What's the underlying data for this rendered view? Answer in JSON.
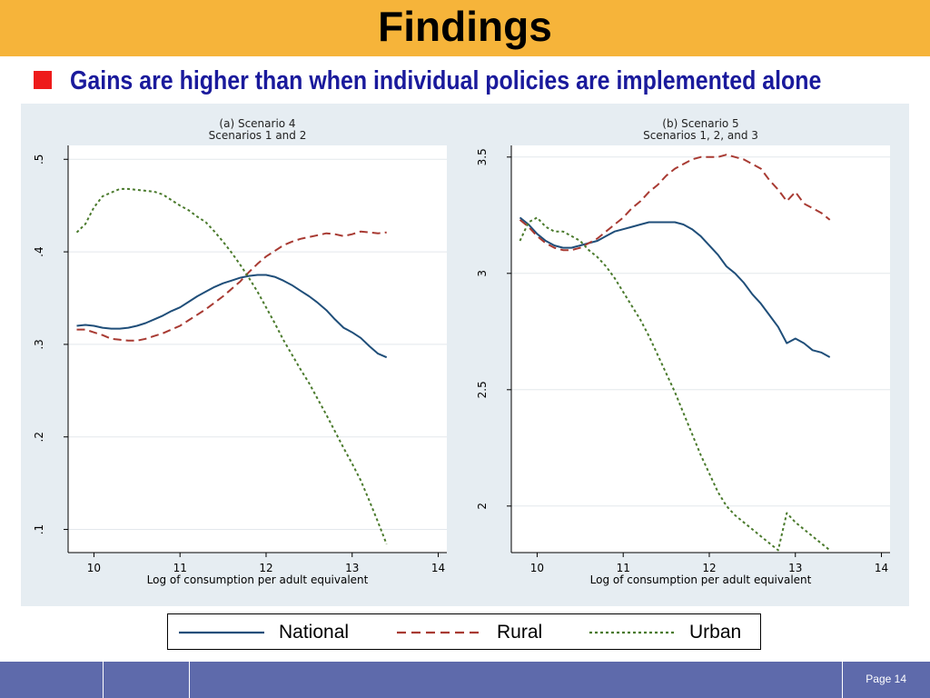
{
  "slide": {
    "title": "Findings",
    "subtitle": "Gains are higher than when individual policies are implemented alone",
    "page": "Page 14"
  },
  "colors": {
    "title_bar": "#f6b43a",
    "subtitle": "#1a1a9c",
    "bullet": "#ee1b1b",
    "footer": "#5e6aab",
    "national": "#1f4e79",
    "rural": "#a83a32",
    "urban": "#4a7a2c"
  },
  "legend": [
    "National",
    "Rural",
    "Urban"
  ],
  "chart_data": [
    {
      "type": "line",
      "title": "(a) Scenario 4",
      "subtitle": "Scenarios 1 and 2",
      "xlabel": "Log of consumption per adult equivalent",
      "ylabel": "",
      "xlim": [
        9.7,
        14.1
      ],
      "ylim": [
        0.075,
        0.515
      ],
      "xticks": [
        10,
        11,
        12,
        13,
        14
      ],
      "yticks": [
        0.1,
        0.2,
        0.3,
        0.4,
        0.5
      ],
      "ytick_labels": [
        ".1",
        ".2",
        ".3",
        ".4",
        ".5"
      ],
      "grid": true,
      "series": [
        {
          "name": "National",
          "style": "solid",
          "x": [
            9.8,
            9.9,
            10.0,
            10.1,
            10.2,
            10.3,
            10.4,
            10.5,
            10.6,
            10.7,
            10.8,
            10.9,
            11.0,
            11.1,
            11.2,
            11.3,
            11.4,
            11.5,
            11.6,
            11.7,
            11.8,
            11.9,
            12.0,
            12.1,
            12.2,
            12.3,
            12.4,
            12.5,
            12.6,
            12.7,
            12.8,
            12.9,
            13.0,
            13.1,
            13.2,
            13.3,
            13.4
          ],
          "y": [
            0.32,
            0.321,
            0.32,
            0.318,
            0.317,
            0.317,
            0.318,
            0.32,
            0.323,
            0.327,
            0.331,
            0.336,
            0.34,
            0.346,
            0.352,
            0.357,
            0.362,
            0.366,
            0.369,
            0.372,
            0.374,
            0.375,
            0.375,
            0.373,
            0.369,
            0.364,
            0.358,
            0.352,
            0.345,
            0.337,
            0.327,
            0.318,
            0.313,
            0.307,
            0.298,
            0.29,
            0.286
          ]
        },
        {
          "name": "Rural",
          "style": "dashed",
          "x": [
            9.8,
            9.9,
            10.0,
            10.1,
            10.2,
            10.3,
            10.4,
            10.5,
            10.6,
            10.7,
            10.8,
            10.9,
            11.0,
            11.1,
            11.2,
            11.3,
            11.4,
            11.5,
            11.6,
            11.7,
            11.8,
            11.9,
            12.0,
            12.1,
            12.2,
            12.3,
            12.4,
            12.5,
            12.6,
            12.7,
            12.8,
            12.9,
            13.0,
            13.1,
            13.2,
            13.3,
            13.4
          ],
          "y": [
            0.316,
            0.316,
            0.313,
            0.31,
            0.306,
            0.305,
            0.304,
            0.304,
            0.306,
            0.309,
            0.312,
            0.316,
            0.32,
            0.326,
            0.332,
            0.338,
            0.345,
            0.352,
            0.36,
            0.368,
            0.378,
            0.387,
            0.395,
            0.401,
            0.407,
            0.411,
            0.414,
            0.416,
            0.418,
            0.42,
            0.419,
            0.417,
            0.419,
            0.422,
            0.421,
            0.42,
            0.421
          ]
        },
        {
          "name": "Urban",
          "style": "dotted",
          "x": [
            9.8,
            9.9,
            10.0,
            10.1,
            10.2,
            10.3,
            10.4,
            10.5,
            10.6,
            10.7,
            10.8,
            10.9,
            11.0,
            11.1,
            11.2,
            11.3,
            11.4,
            11.5,
            11.6,
            11.7,
            11.8,
            11.9,
            12.0,
            12.1,
            12.2,
            12.3,
            12.4,
            12.5,
            12.6,
            12.7,
            12.8,
            12.9,
            13.0,
            13.1,
            13.2,
            13.3,
            13.4
          ],
          "y": [
            0.421,
            0.43,
            0.448,
            0.46,
            0.464,
            0.468,
            0.468,
            0.467,
            0.466,
            0.465,
            0.462,
            0.456,
            0.45,
            0.445,
            0.438,
            0.432,
            0.422,
            0.411,
            0.399,
            0.386,
            0.372,
            0.357,
            0.34,
            0.323,
            0.305,
            0.289,
            0.273,
            0.258,
            0.241,
            0.224,
            0.206,
            0.188,
            0.171,
            0.153,
            0.131,
            0.108,
            0.084
          ]
        }
      ]
    },
    {
      "type": "line",
      "title": "(b) Scenario 5",
      "subtitle": "Scenarios 1, 2, and 3",
      "xlabel": "Log of consumption per adult equivalent",
      "ylabel": "",
      "xlim": [
        9.7,
        14.1
      ],
      "ylim": [
        1.8,
        3.55
      ],
      "xticks": [
        10,
        11,
        12,
        13,
        14
      ],
      "yticks": [
        2,
        2.5,
        3,
        3.5
      ],
      "ytick_labels": [
        "2",
        "2.5",
        "3",
        "3.5"
      ],
      "grid": true,
      "series": [
        {
          "name": "National",
          "style": "solid",
          "x": [
            9.8,
            9.9,
            10.0,
            10.1,
            10.2,
            10.3,
            10.4,
            10.5,
            10.6,
            10.7,
            10.8,
            10.9,
            11.0,
            11.1,
            11.2,
            11.3,
            11.4,
            11.5,
            11.6,
            11.7,
            11.8,
            11.9,
            12.0,
            12.1,
            12.2,
            12.3,
            12.4,
            12.5,
            12.6,
            12.7,
            12.8,
            12.9,
            13.0,
            13.1,
            13.2,
            13.3,
            13.4
          ],
          "y": [
            3.24,
            3.21,
            3.17,
            3.14,
            3.12,
            3.11,
            3.11,
            3.12,
            3.13,
            3.14,
            3.16,
            3.18,
            3.19,
            3.2,
            3.21,
            3.22,
            3.22,
            3.22,
            3.22,
            3.21,
            3.19,
            3.16,
            3.12,
            3.08,
            3.03,
            3.0,
            2.96,
            2.91,
            2.87,
            2.82,
            2.77,
            2.7,
            2.72,
            2.7,
            2.67,
            2.66,
            2.64
          ]
        },
        {
          "name": "Rural",
          "style": "dashed",
          "x": [
            9.8,
            9.9,
            10.0,
            10.1,
            10.2,
            10.3,
            10.4,
            10.5,
            10.6,
            10.7,
            10.8,
            10.9,
            11.0,
            11.1,
            11.2,
            11.3,
            11.4,
            11.5,
            11.6,
            11.7,
            11.8,
            11.9,
            12.0,
            12.1,
            12.2,
            12.3,
            12.4,
            12.5,
            12.6,
            12.7,
            12.8,
            12.9,
            13.0,
            13.1,
            13.2,
            13.3,
            13.4
          ],
          "y": [
            3.23,
            3.2,
            3.16,
            3.13,
            3.11,
            3.1,
            3.1,
            3.11,
            3.13,
            3.15,
            3.18,
            3.21,
            3.24,
            3.28,
            3.31,
            3.35,
            3.38,
            3.42,
            3.45,
            3.47,
            3.49,
            3.5,
            3.5,
            3.5,
            3.51,
            3.5,
            3.49,
            3.47,
            3.45,
            3.4,
            3.36,
            3.31,
            3.35,
            3.3,
            3.28,
            3.26,
            3.23
          ]
        },
        {
          "name": "Urban",
          "style": "dotted",
          "x": [
            9.8,
            9.9,
            10.0,
            10.1,
            10.2,
            10.3,
            10.4,
            10.5,
            10.6,
            10.7,
            10.8,
            10.9,
            11.0,
            11.1,
            11.2,
            11.3,
            11.4,
            11.5,
            11.6,
            11.7,
            11.8,
            11.9,
            12.0,
            12.1,
            12.2,
            12.3,
            12.4,
            12.5,
            12.6,
            12.7,
            12.8,
            12.9,
            13.0,
            13.1,
            13.2,
            13.3,
            13.4
          ],
          "y": [
            3.14,
            3.22,
            3.24,
            3.2,
            3.18,
            3.18,
            3.16,
            3.14,
            3.1,
            3.07,
            3.03,
            2.98,
            2.92,
            2.86,
            2.8,
            2.73,
            2.65,
            2.57,
            2.49,
            2.4,
            2.31,
            2.22,
            2.14,
            2.06,
            2.0,
            1.96,
            1.93,
            1.9,
            1.87,
            1.84,
            1.81,
            1.97,
            1.93,
            1.9,
            1.87,
            1.84,
            1.81
          ]
        }
      ]
    }
  ]
}
